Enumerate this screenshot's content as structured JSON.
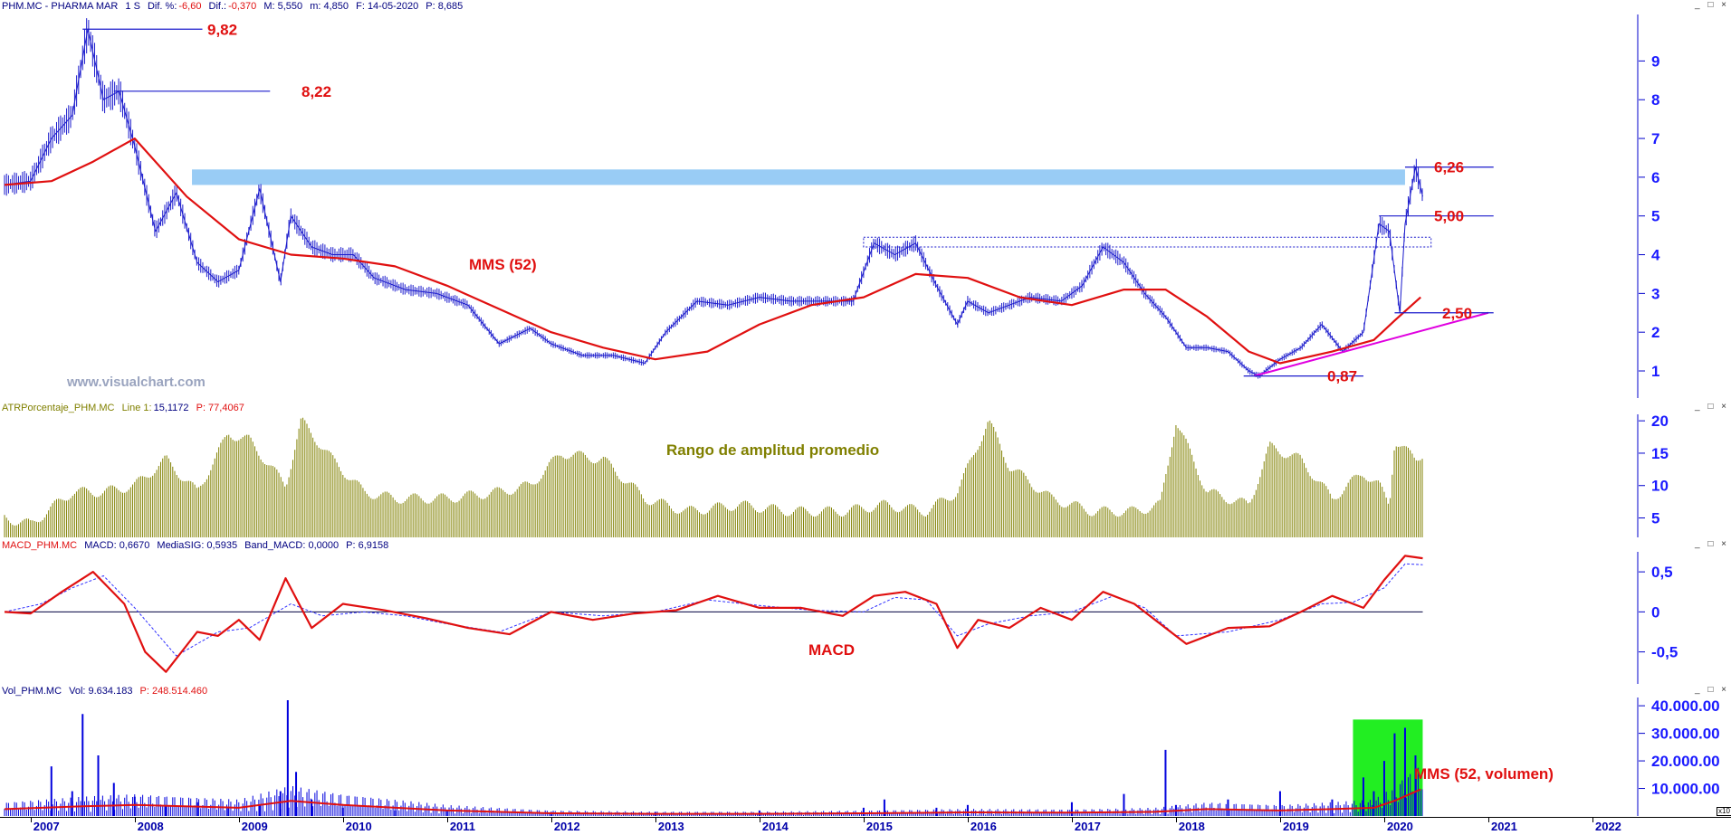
{
  "colors": {
    "price": "#1a1acc",
    "ma": "#e01010",
    "atr": "#808000",
    "macd": "#e01010",
    "signal": "#3030ff",
    "volume": "#0000dd",
    "highlight_band": "#99ccf5",
    "volume_highlight": "#22ee22",
    "trendline": "#e000e0",
    "annotation": "#e01010"
  },
  "header_price": {
    "symbol": "PHM.MC - PHARMA MAR",
    "period": "1 S",
    "dif_pct_label": "Dif. %:",
    "dif_pct_value": "-6,60",
    "dif_label": "Dif.:",
    "dif_value": "-0,370",
    "m": "M: 5,550",
    "mm": "m: 4,850",
    "f": "F: 14-05-2020",
    "p": "P: 8,685"
  },
  "header_atr": {
    "name": "ATRPorcentaje_PHM.MC",
    "line": "Line 1:",
    "line_value": "15,1172",
    "p": "P: 77,4067"
  },
  "header_macd": {
    "name": "MACD_PHM.MC",
    "macd": "MACD: 0,6670",
    "signal": "MediaSIG: 0,5935",
    "band": "Band_MACD: 0,0000",
    "p": "P: 6,9158"
  },
  "header_vol": {
    "name": "Vol_PHM.MC",
    "vol": "Vol: 9.634.183",
    "p": "P: 248.514.460"
  },
  "watermark": "www.visualchart.com",
  "window_controls": "_ □ ×",
  "vol_scale_tag": "x10",
  "x_years": [
    "2007",
    "2008",
    "2009",
    "2010",
    "2011",
    "2012",
    "2013",
    "2014",
    "2015",
    "2016",
    "2017",
    "2018",
    "2019",
    "2020",
    "2021",
    "2022"
  ],
  "price_yticks": [
    "1",
    "2",
    "3",
    "4",
    "5",
    "6",
    "7",
    "8",
    "9"
  ],
  "atr_yticks": [
    "5",
    "10",
    "15",
    "20"
  ],
  "macd_yticks": [
    "-0,5",
    "0",
    "0,5"
  ],
  "vol_yticks": [
    "10.000.00",
    "20.000.00",
    "30.000.00",
    "40.000.00"
  ],
  "annotations": {
    "high_982": "9,82",
    "high_822": "8,22",
    "level_626": "6,26",
    "level_500": "5,00",
    "level_250": "2,50",
    "low_087": "0,87",
    "mms_label": "MMS (52)",
    "atr_label": "Rango de amplitud promedio",
    "macd_label": "MACD",
    "vol_label": "MMS (52, volumen)"
  },
  "chart_data": {
    "type": "line",
    "x_range": [
      "2006-09",
      "2022-12"
    ],
    "price_ylim": [
      0.3,
      10.2
    ],
    "price": {
      "x": [
        2006.75,
        2007.0,
        2007.2,
        2007.4,
        2007.55,
        2007.7,
        2007.85,
        2008.0,
        2008.2,
        2008.4,
        2008.6,
        2008.8,
        2009.0,
        2009.2,
        2009.4,
        2009.5,
        2009.7,
        2009.9,
        2010.1,
        2010.3,
        2010.6,
        2010.9,
        2011.2,
        2011.5,
        2011.8,
        2012.0,
        2012.3,
        2012.6,
        2012.9,
        2013.1,
        2013.4,
        2013.7,
        2014.0,
        2014.3,
        2014.6,
        2014.9,
        2015.1,
        2015.3,
        2015.5,
        2015.7,
        2015.9,
        2016.0,
        2016.2,
        2016.4,
        2016.6,
        2016.9,
        2017.1,
        2017.3,
        2017.5,
        2017.7,
        2017.9,
        2018.1,
        2018.3,
        2018.5,
        2018.7,
        2018.8,
        2019.0,
        2019.2,
        2019.4,
        2019.6,
        2019.8,
        2019.95,
        2020.05,
        2020.15,
        2020.2,
        2020.3,
        2020.37
      ],
      "y": [
        5.8,
        5.9,
        7.0,
        7.6,
        9.82,
        8.0,
        8.22,
        6.8,
        4.6,
        5.6,
        3.8,
        3.3,
        3.6,
        5.7,
        3.3,
        5.0,
        4.2,
        4.0,
        4.0,
        3.4,
        3.1,
        3.0,
        2.7,
        1.7,
        2.1,
        1.7,
        1.4,
        1.4,
        1.2,
        2.0,
        2.8,
        2.7,
        2.9,
        2.8,
        2.8,
        2.8,
        4.3,
        4.0,
        4.3,
        3.2,
        2.2,
        2.8,
        2.5,
        2.7,
        2.9,
        2.8,
        3.2,
        4.2,
        3.8,
        3.0,
        2.4,
        1.6,
        1.6,
        1.5,
        1.0,
        0.87,
        1.3,
        1.6,
        2.2,
        1.5,
        2.0,
        4.8,
        4.6,
        2.5,
        4.8,
        6.26,
        5.5
      ]
    },
    "ma52": {
      "x": [
        2006.75,
        2007.2,
        2007.6,
        2008.0,
        2008.5,
        2009.0,
        2009.5,
        2010.0,
        2010.5,
        2011.0,
        2011.5,
        2012.0,
        2012.5,
        2013.0,
        2013.5,
        2014.0,
        2014.5,
        2015.0,
        2015.5,
        2016.0,
        2016.5,
        2017.0,
        2017.5,
        2017.9,
        2018.3,
        2018.7,
        2019.0,
        2019.5,
        2019.9,
        2020.1,
        2020.35
      ],
      "y": [
        5.8,
        5.9,
        6.4,
        7.0,
        5.5,
        4.4,
        4.0,
        3.9,
        3.7,
        3.2,
        2.6,
        2.0,
        1.6,
        1.3,
        1.5,
        2.2,
        2.7,
        2.9,
        3.5,
        3.4,
        2.9,
        2.7,
        3.1,
        3.1,
        2.4,
        1.5,
        1.2,
        1.5,
        1.8,
        2.3,
        2.9
      ]
    },
    "atr": {
      "x": [
        2006.75,
        2007.0,
        2007.4,
        2007.7,
        2008.0,
        2008.3,
        2008.6,
        2008.9,
        2009.1,
        2009.45,
        2009.6,
        2009.9,
        2010.2,
        2010.5,
        2011.0,
        2011.5,
        2011.8,
        2012.1,
        2012.5,
        2012.9,
        2013.3,
        2013.8,
        2014.3,
        2014.8,
        2015.2,
        2015.6,
        2015.9,
        2016.2,
        2016.4,
        2016.8,
        2017.2,
        2017.6,
        2017.85,
        2018.0,
        2018.3,
        2018.7,
        2018.9,
        2019.2,
        2019.5,
        2019.8,
        2019.95,
        2020.05,
        2020.1,
        2020.3,
        2020.37
      ],
      "y": [
        5,
        4,
        9,
        9,
        10,
        14,
        9,
        18,
        17,
        10,
        20,
        14,
        9,
        8,
        8,
        9,
        10,
        15,
        14,
        8,
        6,
        7,
        6,
        6,
        7,
        6,
        9,
        20,
        13,
        8,
        6,
        6,
        7,
        20,
        9,
        7,
        16,
        14,
        8,
        12,
        10,
        7,
        17,
        14,
        15
      ]
    },
    "macd": {
      "x": [
        2006.75,
        2007.0,
        2007.3,
        2007.6,
        2007.9,
        2008.1,
        2008.3,
        2008.6,
        2008.8,
        2009.0,
        2009.2,
        2009.45,
        2009.7,
        2010.0,
        2010.4,
        2010.8,
        2011.2,
        2011.6,
        2012.0,
        2012.4,
        2012.8,
        2013.2,
        2013.6,
        2014.0,
        2014.4,
        2014.8,
        2015.1,
        2015.4,
        2015.7,
        2015.9,
        2016.1,
        2016.4,
        2016.7,
        2017.0,
        2017.3,
        2017.6,
        2017.9,
        2018.1,
        2018.5,
        2018.9,
        2019.2,
        2019.5,
        2019.8,
        2020.0,
        2020.2,
        2020.37
      ],
      "y": [
        0.0,
        -0.02,
        0.25,
        0.5,
        0.1,
        -0.5,
        -0.75,
        -0.25,
        -0.3,
        -0.1,
        -0.35,
        0.42,
        -0.2,
        0.1,
        0.02,
        -0.08,
        -0.2,
        -0.28,
        0.0,
        -0.1,
        -0.02,
        0.02,
        0.2,
        0.05,
        0.05,
        -0.05,
        0.2,
        0.25,
        0.1,
        -0.45,
        -0.1,
        -0.2,
        0.05,
        -0.1,
        0.25,
        0.1,
        -0.2,
        -0.4,
        -0.2,
        -0.18,
        0.0,
        0.2,
        0.05,
        0.4,
        0.7,
        0.67
      ]
    },
    "macd_signal": {
      "x": [
        2006.75,
        2007.1,
        2007.4,
        2007.7,
        2008.0,
        2008.4,
        2008.8,
        2009.1,
        2009.5,
        2009.8,
        2010.2,
        2010.6,
        2011.0,
        2011.5,
        2012.0,
        2012.5,
        2013.0,
        2013.5,
        2014.0,
        2014.5,
        2015.0,
        2015.3,
        2015.6,
        2015.9,
        2016.2,
        2016.6,
        2017.0,
        2017.4,
        2017.7,
        2018.0,
        2018.5,
        2019.0,
        2019.4,
        2019.7,
        2020.0,
        2020.2,
        2020.37
      ],
      "y": [
        0.0,
        0.1,
        0.3,
        0.45,
        0.05,
        -0.55,
        -0.25,
        -0.2,
        0.1,
        -0.05,
        0.0,
        -0.05,
        -0.15,
        -0.25,
        0.0,
        -0.05,
        0.0,
        0.15,
        0.08,
        0.02,
        0.0,
        0.18,
        0.15,
        -0.3,
        -0.15,
        -0.05,
        0.0,
        0.2,
        0.05,
        -0.3,
        -0.25,
        -0.1,
        0.1,
        0.12,
        0.3,
        0.6,
        0.59
      ]
    },
    "macd_ylim": [
      -0.9,
      0.75
    ],
    "atr_ylim": [
      2,
      21
    ],
    "volume": {
      "x": [
        2007.2,
        2007.4,
        2007.5,
        2007.65,
        2007.8,
        2008.0,
        2008.3,
        2008.6,
        2008.9,
        2009.2,
        2009.4,
        2009.47,
        2009.55,
        2009.7,
        2010.0,
        2010.5,
        2011.0,
        2012.0,
        2013.0,
        2014.0,
        2015.0,
        2015.2,
        2015.7,
        2016.0,
        2017.0,
        2017.5,
        2017.9,
        2018.0,
        2018.5,
        2019.0,
        2019.5,
        2019.8,
        2019.9,
        2020.0,
        2020.1,
        2020.2,
        2020.3
      ],
      "y": [
        18000,
        9000,
        37000,
        22000,
        12000,
        7000,
        4000,
        5000,
        3000,
        4000,
        9000,
        42000,
        16000,
        6000,
        3000,
        2000,
        2000,
        1500,
        1500,
        2000,
        3000,
        6000,
        3000,
        4000,
        5000,
        8000,
        24000,
        4000,
        6000,
        9000,
        6000,
        14000,
        9000,
        20000,
        30000,
        32000,
        22000
      ]
    },
    "volume_ma52": {
      "x": [
        2006.75,
        2007.5,
        2008.0,
        2009.0,
        2009.5,
        2010.0,
        2011.0,
        2012.0,
        2013.0,
        2014.0,
        2015.0,
        2016.0,
        2017.0,
        2017.8,
        2018.3,
        2019.0,
        2019.5,
        2019.9,
        2020.1,
        2020.35
      ],
      "y": [
        2500,
        3500,
        4000,
        3000,
        5500,
        4000,
        2000,
        1000,
        800,
        800,
        1000,
        1300,
        1200,
        1500,
        2500,
        2000,
        2500,
        3000,
        5500,
        9634
      ]
    },
    "vol_ylim": [
      0,
      43000
    ],
    "highlight_price_band": [
      5.8,
      6.2
    ],
    "dotted_band": [
      4.2,
      4.45
    ],
    "volume_highlight_x": [
      2019.7,
      2020.3
    ]
  }
}
